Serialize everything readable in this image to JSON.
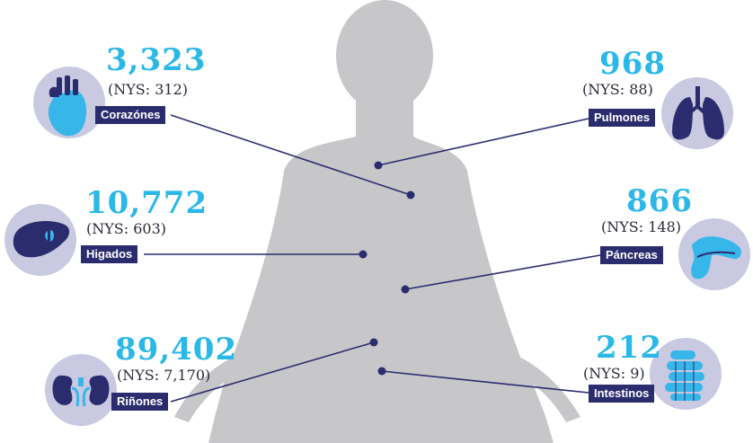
{
  "colors": {
    "accent": "#29b8e8",
    "navy": "#2b2c6e",
    "silhouette": "#c7c7c9",
    "circle": "#c9c9e1",
    "organ": "#37b7e9"
  },
  "organs": [
    {
      "id": "heart",
      "count": "3,323",
      "nys": "(NYS: 312)",
      "label": "Corazónes",
      "icon": "heart-icon"
    },
    {
      "id": "lungs",
      "count": "968",
      "nys": "(NYS: 88)",
      "label": "Pulmones",
      "icon": "lungs-icon"
    },
    {
      "id": "liver",
      "count": "10,772",
      "nys": "(NYS: 603)",
      "label": "Higados",
      "icon": "liver-icon"
    },
    {
      "id": "pancreas",
      "count": "866",
      "nys": "(NYS: 148)",
      "label": "Páncreas",
      "icon": "pancreas-icon"
    },
    {
      "id": "kidneys",
      "count": "89,402",
      "nys": "(NYS: 7,170)",
      "label": "Riñones",
      "icon": "kidneys-icon"
    },
    {
      "id": "intestines",
      "count": "212",
      "nys": "(NYS: 9)",
      "label": "Intestinos",
      "icon": "intestines-icon"
    }
  ]
}
